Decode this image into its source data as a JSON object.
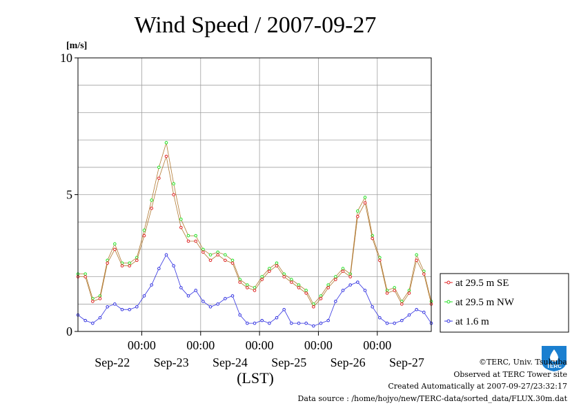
{
  "colors": {
    "grid": "#a0a0a0",
    "se": "#e02020",
    "nw": "#20e020",
    "low": "#3030e0",
    "line_upper": "#b07830",
    "logo": "#1a7fd0"
  },
  "logo_text": "TERC",
  "footer": {
    "copyright": "©TERC, Univ. Tsukuba",
    "observed": "Observed at TERC Tower site",
    "created": "Created Automatically at 2007-09-27/23:32:17",
    "source": "Data source : /home/hojyo/new/TERC-data/sorted_data/FLUX.30m.dat"
  },
  "chart_data": {
    "type": "line",
    "title": "Wind Speed / 2007-09-27",
    "ylabel": "[m/s]",
    "xlabel": "(LST)",
    "ylim": [
      0,
      10
    ],
    "yticks": [
      0,
      5,
      10
    ],
    "xlim": [
      0,
      6
    ],
    "x_unit": "days from 2007-09-21 22:00 LST",
    "midnight_labels": [
      "00:00",
      "00:00",
      "00:00",
      "00:00",
      "00:00"
    ],
    "midnight_x": [
      1.0833,
      2.0833,
      3.0833,
      4.0833,
      5.0833
    ],
    "date_labels": [
      "Sep-22",
      "Sep-23",
      "Sep-24",
      "Sep-25",
      "Sep-26",
      "Sep-27"
    ],
    "date_label_x": [
      0.5833,
      1.5833,
      2.5833,
      3.5833,
      4.5833,
      5.5833
    ],
    "vgrid_x": [
      1.0833,
      2.0833,
      3.0833,
      4.0833,
      5.0833
    ],
    "hgrid_y": [
      1,
      2,
      3,
      4,
      5,
      6,
      7,
      8,
      9
    ],
    "x": [
      0.0,
      0.125,
      0.25,
      0.375,
      0.5,
      0.625,
      0.75,
      0.875,
      1.0,
      1.125,
      1.25,
      1.375,
      1.5,
      1.625,
      1.75,
      1.875,
      2.0,
      2.125,
      2.25,
      2.375,
      2.5,
      2.625,
      2.75,
      2.875,
      3.0,
      3.125,
      3.25,
      3.375,
      3.5,
      3.625,
      3.75,
      3.875,
      4.0,
      4.125,
      4.25,
      4.375,
      4.5,
      4.625,
      4.75,
      4.875,
      5.0,
      5.125,
      5.25,
      5.375,
      5.5,
      5.625,
      5.75,
      5.875,
      6.0
    ],
    "legend_position": "right",
    "series": [
      {
        "name": "at 29.5 m SE",
        "color": "#e02020",
        "marker": "circle",
        "values": [
          2.0,
          2.0,
          1.1,
          1.2,
          2.5,
          3.0,
          2.4,
          2.4,
          2.6,
          3.5,
          4.5,
          5.6,
          6.4,
          5.0,
          3.8,
          3.3,
          3.3,
          2.9,
          2.6,
          2.8,
          2.6,
          2.5,
          1.8,
          1.6,
          1.5,
          1.9,
          2.2,
          2.4,
          2.0,
          1.8,
          1.6,
          1.4,
          0.9,
          1.2,
          1.6,
          1.9,
          2.2,
          2.0,
          4.2,
          4.7,
          3.4,
          2.6,
          1.4,
          1.5,
          1.0,
          1.4,
          2.6,
          2.1,
          1.0
        ]
      },
      {
        "name": "at 29.5 m NW",
        "color": "#20e020",
        "marker": "circle",
        "values": [
          2.1,
          2.1,
          1.2,
          1.3,
          2.6,
          3.2,
          2.5,
          2.5,
          2.7,
          3.7,
          4.8,
          6.0,
          6.9,
          5.4,
          4.1,
          3.5,
          3.5,
          3.0,
          2.8,
          2.9,
          2.8,
          2.6,
          1.9,
          1.7,
          1.6,
          2.0,
          2.3,
          2.5,
          2.1,
          1.9,
          1.7,
          1.5,
          1.0,
          1.3,
          1.7,
          2.0,
          2.3,
          2.1,
          4.4,
          4.9,
          3.5,
          2.7,
          1.5,
          1.6,
          1.1,
          1.5,
          2.8,
          2.2,
          1.1
        ]
      },
      {
        "name": "at 1.6 m",
        "color": "#3030e0",
        "marker": "circle",
        "values": [
          0.6,
          0.4,
          0.3,
          0.5,
          0.9,
          1.0,
          0.8,
          0.8,
          0.9,
          1.3,
          1.7,
          2.3,
          2.8,
          2.4,
          1.6,
          1.3,
          1.5,
          1.1,
          0.9,
          1.0,
          1.2,
          1.3,
          0.6,
          0.3,
          0.3,
          0.4,
          0.3,
          0.5,
          0.8,
          0.3,
          0.3,
          0.3,
          0.2,
          0.3,
          0.4,
          1.1,
          1.5,
          1.7,
          1.8,
          1.5,
          0.9,
          0.5,
          0.3,
          0.3,
          0.4,
          0.6,
          0.8,
          0.7,
          0.3
        ]
      }
    ]
  }
}
